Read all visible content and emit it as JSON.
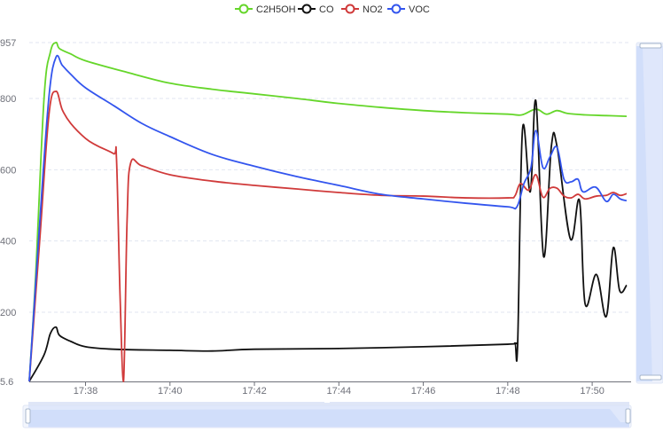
{
  "chart_data": {
    "type": "line",
    "title": "",
    "xlabel": "",
    "ylabel": "",
    "xlim": [
      "17:36:40",
      "17:50:49"
    ],
    "ylim": [
      5.6,
      957
    ],
    "y_ticks": [
      "957",
      "800",
      "600",
      "400",
      "200",
      "5.6"
    ],
    "y_tick_values": [
      957,
      800,
      600,
      400,
      200,
      5.6
    ],
    "x_ticks": [
      "17:38",
      "17:40",
      "17:42",
      "17:44",
      "17:46",
      "17:48",
      "17:50"
    ],
    "grid": true,
    "smooth": true,
    "legend_position": "top-center",
    "series": [
      {
        "name": "C2H5OH",
        "color": "#65d62a",
        "x": [
          "17:36:40",
          "17:36:49",
          "17:37:01",
          "17:37:10",
          "17:37:18",
          "17:37:23",
          "17:37:39",
          "17:38:00",
          "17:39:00",
          "17:40:00",
          "17:41:00",
          "17:42:00",
          "17:43:00",
          "17:44:00",
          "17:45:00",
          "17:46:00",
          "17:47:00",
          "17:48:00",
          "17:48:20",
          "17:48:40",
          "17:48:55",
          "17:49:10",
          "17:49:25",
          "17:49:50",
          "17:50:20",
          "17:50:49"
        ],
        "y": [
          5.6,
          300,
          800,
          930,
          957,
          940,
          925,
          906,
          873,
          843,
          826,
          813,
          800,
          786,
          775,
          766,
          760,
          756,
          754,
          770,
          756,
          766,
          758,
          754,
          752,
          750
        ]
      },
      {
        "name": "CO",
        "color": "#111111",
        "x": [
          "17:36:40",
          "17:37:01",
          "17:37:10",
          "17:37:18",
          "17:37:23",
          "17:37:39",
          "17:38:00",
          "17:38:40",
          "17:40:00",
          "17:41:00",
          "17:42:00",
          "17:44:00",
          "17:46:00",
          "17:48:00",
          "17:48:10",
          "17:48:14",
          "17:48:21",
          "17:48:32",
          "17:48:40",
          "17:48:51",
          "17:49:02",
          "17:49:10",
          "17:49:29",
          "17:49:42",
          "17:49:50",
          "17:50:06",
          "17:50:20",
          "17:50:30",
          "17:50:39",
          "17:50:49"
        ],
        "y": [
          5.6,
          80,
          140,
          158,
          135,
          118,
          103,
          96,
          93,
          91,
          96,
          98,
          103,
          110,
          113,
          105,
          713,
          538,
          793,
          356,
          666,
          666,
          406,
          513,
          223,
          306,
          188,
          381,
          261,
          276
        ]
      },
      {
        "name": "NO2",
        "color": "#d03a3a",
        "x": [
          "17:36:40",
          "17:36:55",
          "17:37:08",
          "17:37:18",
          "17:37:27",
          "17:37:39",
          "17:38:00",
          "17:38:16",
          "17:38:40",
          "17:38:44",
          "17:38:49",
          "17:38:54",
          "17:38:59",
          "17:39:04",
          "17:39:20",
          "17:40:00",
          "17:41:00",
          "17:42:00",
          "17:43:00",
          "17:44:00",
          "17:45:00",
          "17:46:00",
          "17:47:00",
          "17:48:00",
          "17:48:10",
          "17:48:18",
          "17:48:30",
          "17:48:40",
          "17:48:50",
          "17:49:00",
          "17:49:10",
          "17:49:20",
          "17:49:30",
          "17:49:40",
          "17:49:50",
          "17:50:06",
          "17:50:20",
          "17:50:30",
          "17:50:40",
          "17:50:49"
        ],
        "y": [
          5.6,
          405,
          755,
          820,
          768,
          730,
          688,
          668,
          645,
          630,
          250,
          5.6,
          455,
          618,
          611,
          586,
          568,
          556,
          546,
          536,
          528,
          526,
          521,
          521,
          526,
          561,
          543,
          586,
          523,
          548,
          548,
          526,
          521,
          531,
          518,
          526,
          528,
          536,
          528,
          533
        ]
      },
      {
        "name": "VOC",
        "color": "#3355ee",
        "x": [
          "17:36:40",
          "17:36:55",
          "17:37:08",
          "17:37:18",
          "17:37:27",
          "17:37:39",
          "17:38:00",
          "17:38:40",
          "17:39:20",
          "17:40:00",
          "17:41:00",
          "17:42:00",
          "17:43:00",
          "17:44:00",
          "17:45:00",
          "17:46:00",
          "17:47:00",
          "17:48:00",
          "17:48:13",
          "17:48:23",
          "17:48:33",
          "17:48:40",
          "17:48:50",
          "17:49:00",
          "17:49:10",
          "17:49:20",
          "17:49:30",
          "17:49:40",
          "17:49:47",
          "17:50:05",
          "17:50:20",
          "17:50:30",
          "17:50:40",
          "17:50:49"
        ],
        "y": [
          5.6,
          455,
          805,
          916,
          893,
          868,
          830,
          780,
          730,
          693,
          643,
          610,
          581,
          556,
          531,
          518,
          506,
          496,
          496,
          561,
          606,
          710,
          606,
          636,
          663,
          573,
          566,
          573,
          538,
          551,
          511,
          531,
          518,
          513
        ]
      }
    ]
  },
  "datazoom": {
    "bottom_range_percent": [
      0,
      100
    ],
    "right_range_percent": [
      0,
      100
    ]
  }
}
